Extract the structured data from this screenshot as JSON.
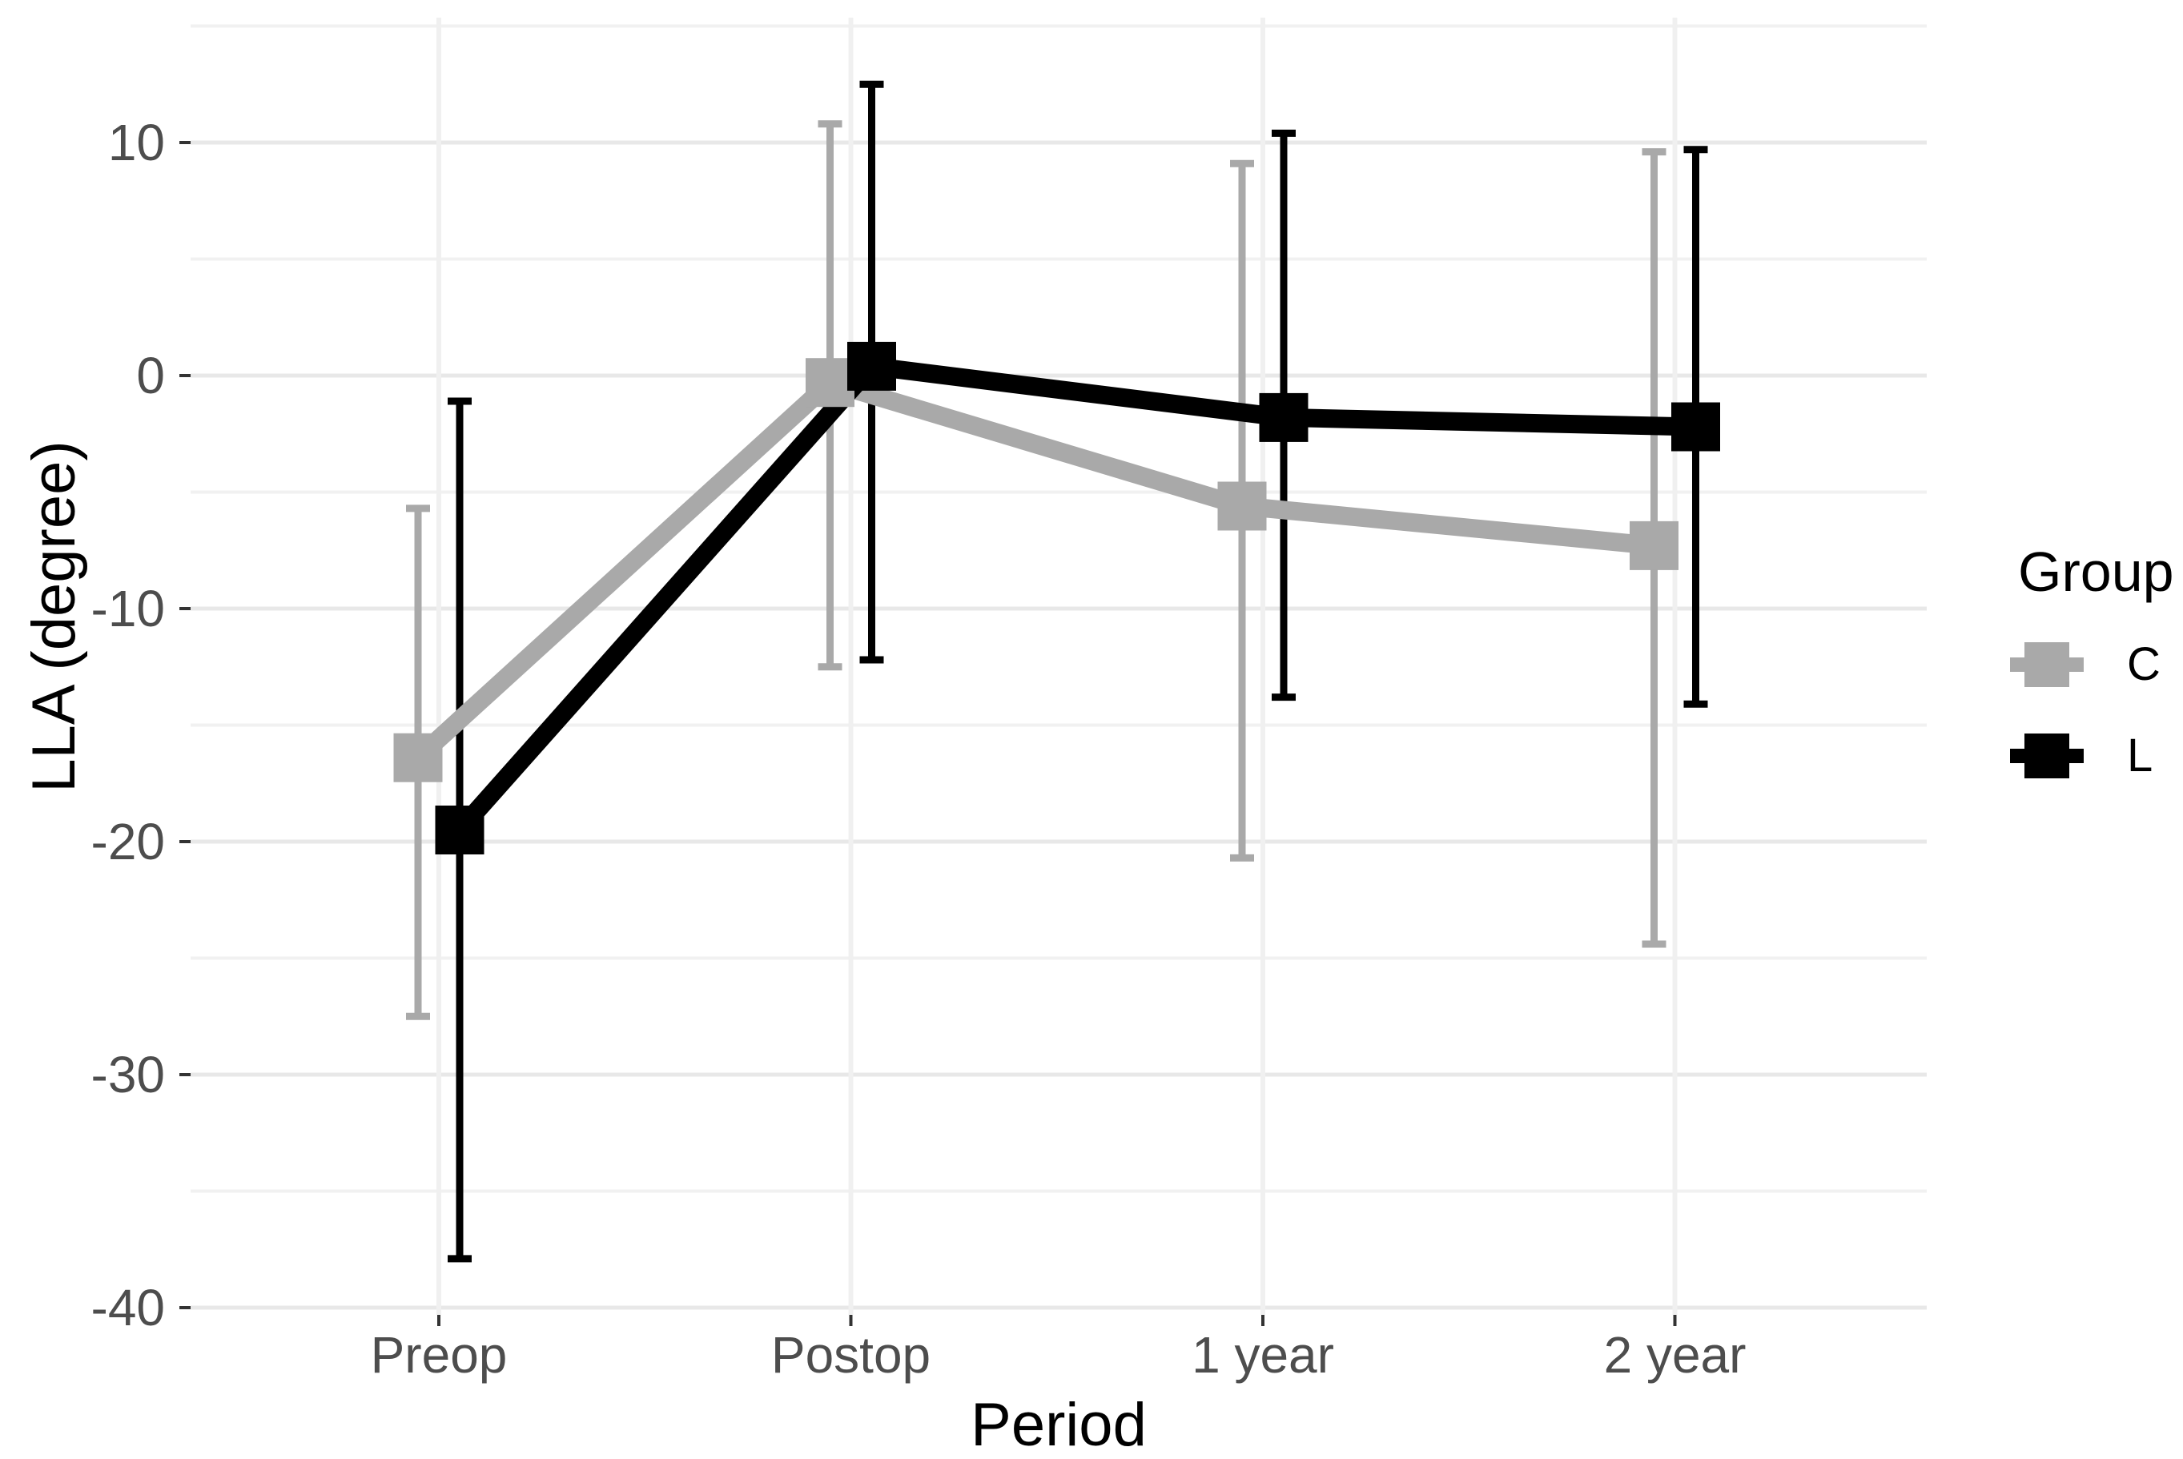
{
  "chart_data": {
    "type": "line",
    "title": "",
    "xlabel": "Period",
    "ylabel": "LLA (degree)",
    "categories": [
      "Preop",
      "Postop",
      "1 year",
      "2 year"
    ],
    "y_ticks": [
      10,
      0,
      -10,
      -20,
      -30,
      -40
    ],
    "y_minor_ticks": [
      15,
      5,
      -5,
      -15,
      -25,
      -35
    ],
    "ylim": [
      -41,
      15.5
    ],
    "grid": "on",
    "legend": {
      "title": "Group",
      "position": "right",
      "entries": [
        {
          "label": "C",
          "color": "#a9a9a9"
        },
        {
          "label": "L",
          "color": "#000000"
        }
      ]
    },
    "series": [
      {
        "name": "C",
        "color": "#a9a9a9",
        "marker": "square",
        "means": [
          -16.4,
          -0.3,
          -5.6,
          -7.3
        ],
        "error_low": [
          -27.5,
          -12.5,
          -20.7,
          -24.4
        ],
        "error_high": [
          -5.7,
          10.8,
          9.1,
          9.6
        ]
      },
      {
        "name": "L",
        "color": "#000000",
        "marker": "square",
        "means": [
          -19.5,
          0.4,
          -1.8,
          -2.2
        ],
        "error_low": [
          -37.9,
          -12.2,
          -13.8,
          -14.1
        ],
        "error_high": [
          -1.1,
          12.5,
          10.4,
          9.7
        ]
      }
    ]
  },
  "style": {
    "background": "#ffffff",
    "grid_major": "#e8e8e8",
    "grid_minor": "#f1f1f1",
    "grid_vertical": "#f0f0f0",
    "tick_mark_color": "#333333",
    "tick_label_color": "#4d4d4d",
    "axis_title_color": "#000000"
  }
}
